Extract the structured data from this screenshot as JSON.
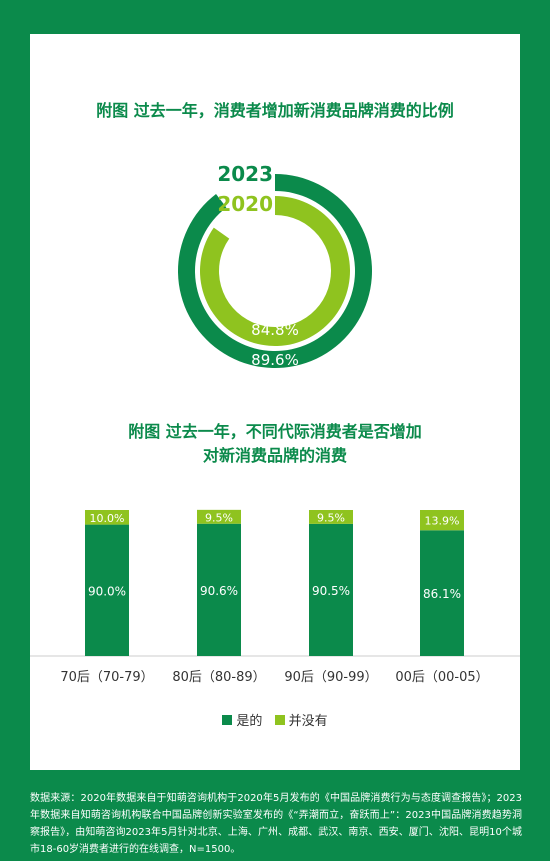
{
  "colors": {
    "dark_green": "#0b8a4b",
    "light_green": "#8fc31f",
    "background": "#0b8a4b",
    "card": "#ffffff"
  },
  "chart_data": [
    {
      "type": "pie",
      "title": "附图 过去一年，消费者增加新消费品牌消费的比例",
      "variant": "concentric-donut",
      "series": [
        {
          "name": "2023",
          "values": [
            89.6
          ],
          "labels": [
            "89.6%"
          ],
          "color": "#0b8a4b"
        },
        {
          "name": "2020",
          "values": [
            84.8
          ],
          "labels": [
            "84.8%"
          ],
          "color": "#8fc31f"
        }
      ],
      "ylim": [
        0,
        100
      ]
    },
    {
      "type": "bar",
      "stacked": true,
      "title_lines": [
        "附图 过去一年，不同代际消费者是否增加",
        "对新消费品牌的消费"
      ],
      "categories": [
        "70后（70-79）",
        "80后（80-89）",
        "90后（90-99）",
        "00后（00-05）"
      ],
      "series": [
        {
          "name": "是的",
          "values": [
            90.0,
            90.6,
            90.5,
            86.1
          ],
          "labels": [
            "90.0%",
            "90.6%",
            "90.5%",
            "86.1%"
          ],
          "color": "#0b8a4b"
        },
        {
          "name": "并没有",
          "values": [
            10.0,
            9.5,
            9.5,
            13.9
          ],
          "labels": [
            "10.0%",
            "9.5%",
            "9.5%",
            "13.9%"
          ],
          "color": "#8fc31f"
        }
      ],
      "ylim": [
        0,
        100
      ],
      "legend": "bottom"
    }
  ],
  "footnote": "数据来源：2020年数据来自于知萌咨询机构于2020年5月发布的《中国品牌消费行为与态度调查报告》；2023年数据来自知萌咨询机构联合中国品牌创新实验室发布的《“弄潮而立，奋跃而上”：2023中国品牌消费趋势洞察报告》，由知萌咨询2023年5月针对北京、上海、广州、成都、武汉、南京、西安、厦门、沈阳、昆明10个城市18-60岁消费者进行的在线调查，N=1500。"
}
